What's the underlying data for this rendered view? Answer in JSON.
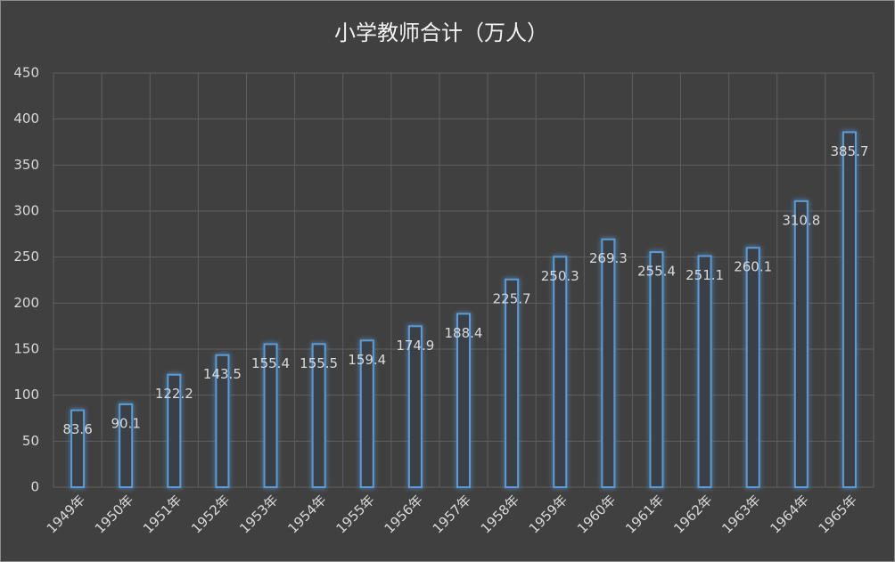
{
  "chart_data": {
    "type": "bar",
    "title": "小学教师合计（万人）",
    "categories": [
      "1949年",
      "1950年",
      "1951年",
      "1952年",
      "1953年",
      "1954年",
      "1955年",
      "1956年",
      "1957年",
      "1958年",
      "1959年",
      "1960年",
      "1961年",
      "1962年",
      "1963年",
      "1964年",
      "1965年"
    ],
    "values": [
      83.6,
      90.1,
      122.2,
      143.5,
      155.4,
      155.5,
      159.4,
      174.9,
      188.4,
      225.7,
      250.3,
      269.3,
      255.4,
      251.1,
      260.1,
      310.8,
      385.7
    ],
    "color": "#5b9bd5",
    "ylim": [
      0,
      450
    ],
    "yticks": [
      0,
      50,
      100,
      150,
      200,
      250,
      300,
      350,
      400,
      450
    ],
    "grid": true
  }
}
